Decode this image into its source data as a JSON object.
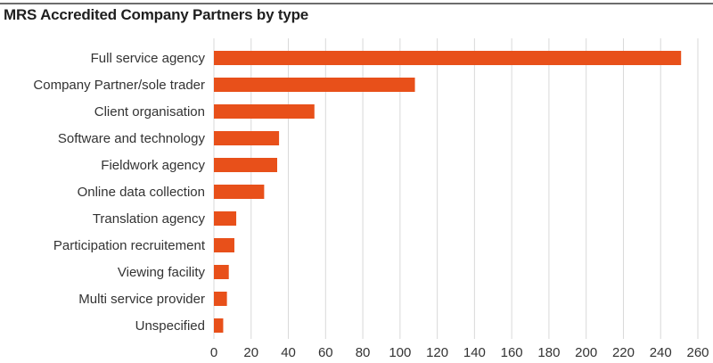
{
  "title": "MRS  Accredited Company Partners by type",
  "colors": {
    "bar": "#E8501A",
    "grid": "#d9d9d9",
    "text": "#333333",
    "rule": "#6d6d6d"
  },
  "chart_data": {
    "type": "bar",
    "orientation": "horizontal",
    "title": "MRS  Accredited Company Partners by type",
    "categories": [
      "Full service agency",
      "Company Partner/sole trader",
      "Client organisation",
      "Software and technology",
      "Fieldwork agency",
      "Online data collection",
      "Translation agency",
      "Participation recruitement",
      "Viewing facility",
      "Multi service provider",
      "Unspecified"
    ],
    "values": [
      251,
      108,
      54,
      35,
      34,
      27,
      12,
      11,
      8,
      7,
      5
    ],
    "xlim": [
      0,
      260
    ],
    "xticks": [
      "0",
      "20",
      "40",
      "60",
      "80",
      "100",
      "120",
      "140",
      "160",
      "180",
      "200",
      "220",
      "240",
      "260"
    ],
    "grid": "vertical",
    "legend": "none"
  }
}
